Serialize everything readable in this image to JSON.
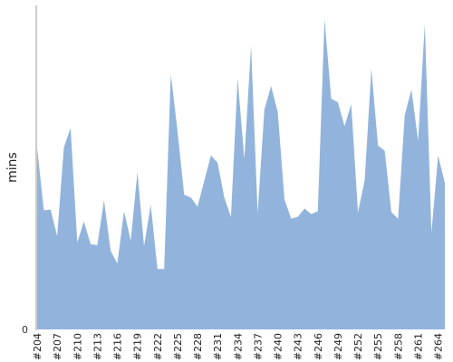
{
  "chart_data": {
    "type": "area",
    "title": "",
    "xlabel": "",
    "ylabel": "mins",
    "y_tick_labels": [
      "0"
    ],
    "x_tick_labels": [
      "#204",
      "#207",
      "#210",
      "#213",
      "#216",
      "#219",
      "#222",
      "#225",
      "#228",
      "#231",
      "#234",
      "#237",
      "#240",
      "#243",
      "#246",
      "#249",
      "#252",
      "#255",
      "#258",
      "#261",
      "#264"
    ],
    "grid": false,
    "legend": "none",
    "colors": {
      "area": "#92b4dc",
      "axis": "#999999"
    },
    "series": [
      {
        "x": [
          "#204",
          "#205",
          "#206",
          "#207",
          "#208",
          "#209",
          "#210",
          "#211",
          "#212",
          "#213",
          "#214",
          "#215",
          "#216",
          "#217",
          "#218",
          "#219",
          "#220",
          "#221",
          "#222",
          "#223",
          "#224",
          "#225",
          "#226",
          "#227",
          "#228",
          "#229",
          "#230",
          "#231",
          "#232",
          "#233",
          "#234",
          "#235",
          "#236",
          "#237",
          "#238",
          "#239",
          "#240",
          "#241",
          "#242",
          "#243",
          "#244",
          "#245",
          "#246",
          "#247",
          "#248",
          "#249",
          "#250",
          "#251",
          "#252",
          "#253",
          "#254",
          "#255",
          "#256",
          "#257",
          "#258",
          "#259",
          "#260",
          "#261",
          "#262",
          "#263",
          "#264",
          "#265"
        ],
        "values": [
          198,
          130,
          131,
          102,
          199,
          220,
          95,
          118,
          93,
          92,
          141,
          86,
          72,
          129,
          97,
          172,
          91,
          136,
          66,
          66,
          279,
          217,
          147,
          144,
          134,
          162,
          190,
          182,
          144,
          123,
          274,
          186,
          310,
          127,
          240,
          266,
          237,
          142,
          121,
          123,
          132,
          126,
          129,
          339,
          252,
          248,
          222,
          246,
          128,
          163,
          285,
          201,
          195,
          128,
          121,
          234,
          262,
          206,
          334,
          106,
          190,
          160
        ]
      }
    ]
  }
}
